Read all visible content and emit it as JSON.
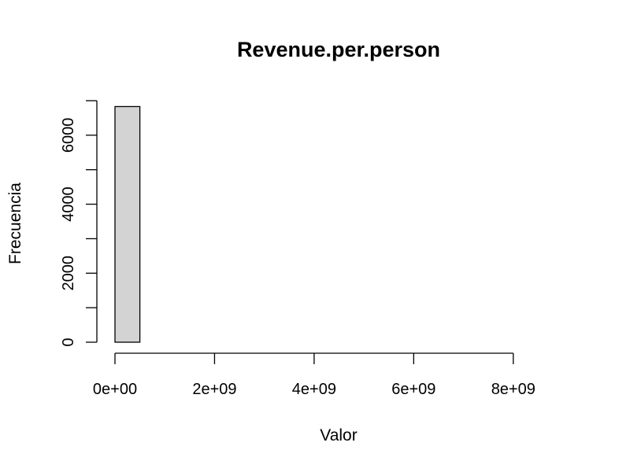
{
  "chart_data": {
    "type": "bar",
    "title": "Revenue.per.person",
    "xlabel": "Valor",
    "ylabel": "Frecuencia",
    "bin_width": 500000000,
    "bin_starts": [
      0,
      500000000,
      1000000000,
      1500000000,
      2000000000,
      2500000000,
      3000000000,
      3500000000,
      4000000000,
      4500000000,
      5000000000,
      5500000000,
      6000000000,
      6500000000,
      7000000000,
      7500000000,
      8000000000,
      8500000000
    ],
    "values": [
      6830,
      0,
      0,
      0,
      0,
      0,
      0,
      0,
      0,
      0,
      0,
      0,
      0,
      0,
      0,
      0,
      0,
      0
    ],
    "xlim": [
      0,
      9000000000
    ],
    "ylim": [
      0,
      7000
    ],
    "x_ticks": [
      0,
      2000000000,
      4000000000,
      6000000000,
      8000000000
    ],
    "x_tick_labels": [
      "0e+00",
      "2e+09",
      "4e+09",
      "6e+09",
      "8e+09"
    ],
    "y_ticks": [
      0,
      1000,
      2000,
      3000,
      4000,
      5000,
      6000,
      7000
    ],
    "y_tick_labels": [
      "0",
      "",
      "2000",
      "",
      "4000",
      "",
      "6000",
      ""
    ],
    "bar_color": "#d3d3d3",
    "grid": false,
    "legend": "none"
  }
}
